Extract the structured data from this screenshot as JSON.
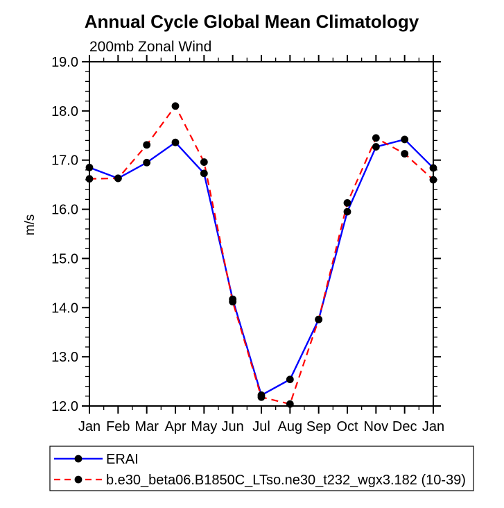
{
  "page": {
    "background": "#ffffff"
  },
  "chart_data": {
    "type": "line",
    "title": "Annual Cycle Global Mean Climatology",
    "subtitle": "200mb Zonal Wind",
    "ylabel": "m/s",
    "x_tick_labels": [
      "Jan",
      "Feb",
      "Mar",
      "Apr",
      "May",
      "Jun",
      "Jul",
      "Aug",
      "Sep",
      "Oct",
      "Nov",
      "Dec",
      "Jan"
    ],
    "y_tick_labels": [
      "12.0",
      "13.0",
      "14.0",
      "15.0",
      "16.0",
      "17.0",
      "18.0",
      "19.0"
    ],
    "ylim": [
      12.0,
      19.0
    ],
    "y_major_step": 1.0,
    "y_minor_step": 0.2,
    "x_minor_step": 0.5,
    "grid": false,
    "legend_position": "bottom-left",
    "axis_color": "#000000",
    "marker_color": "#000000",
    "series": [
      {
        "name": "ERAI",
        "color": "#0000ff",
        "line_style": "solid",
        "marker": "circle",
        "values": [
          16.85,
          16.63,
          16.95,
          17.36,
          16.73,
          14.17,
          12.22,
          12.54,
          13.76,
          15.95,
          17.27,
          17.42,
          16.84
        ]
      },
      {
        "name": "b.e30_beta06.B1850C_LTso.ne30_t232_wgx3.182 (10-39)",
        "color": "#ff0000",
        "line_style": "dashed",
        "marker": "circle",
        "values": [
          16.62,
          16.63,
          17.31,
          18.1,
          16.96,
          14.12,
          12.18,
          12.04,
          13.76,
          16.13,
          17.45,
          17.13,
          16.6
        ]
      }
    ]
  }
}
